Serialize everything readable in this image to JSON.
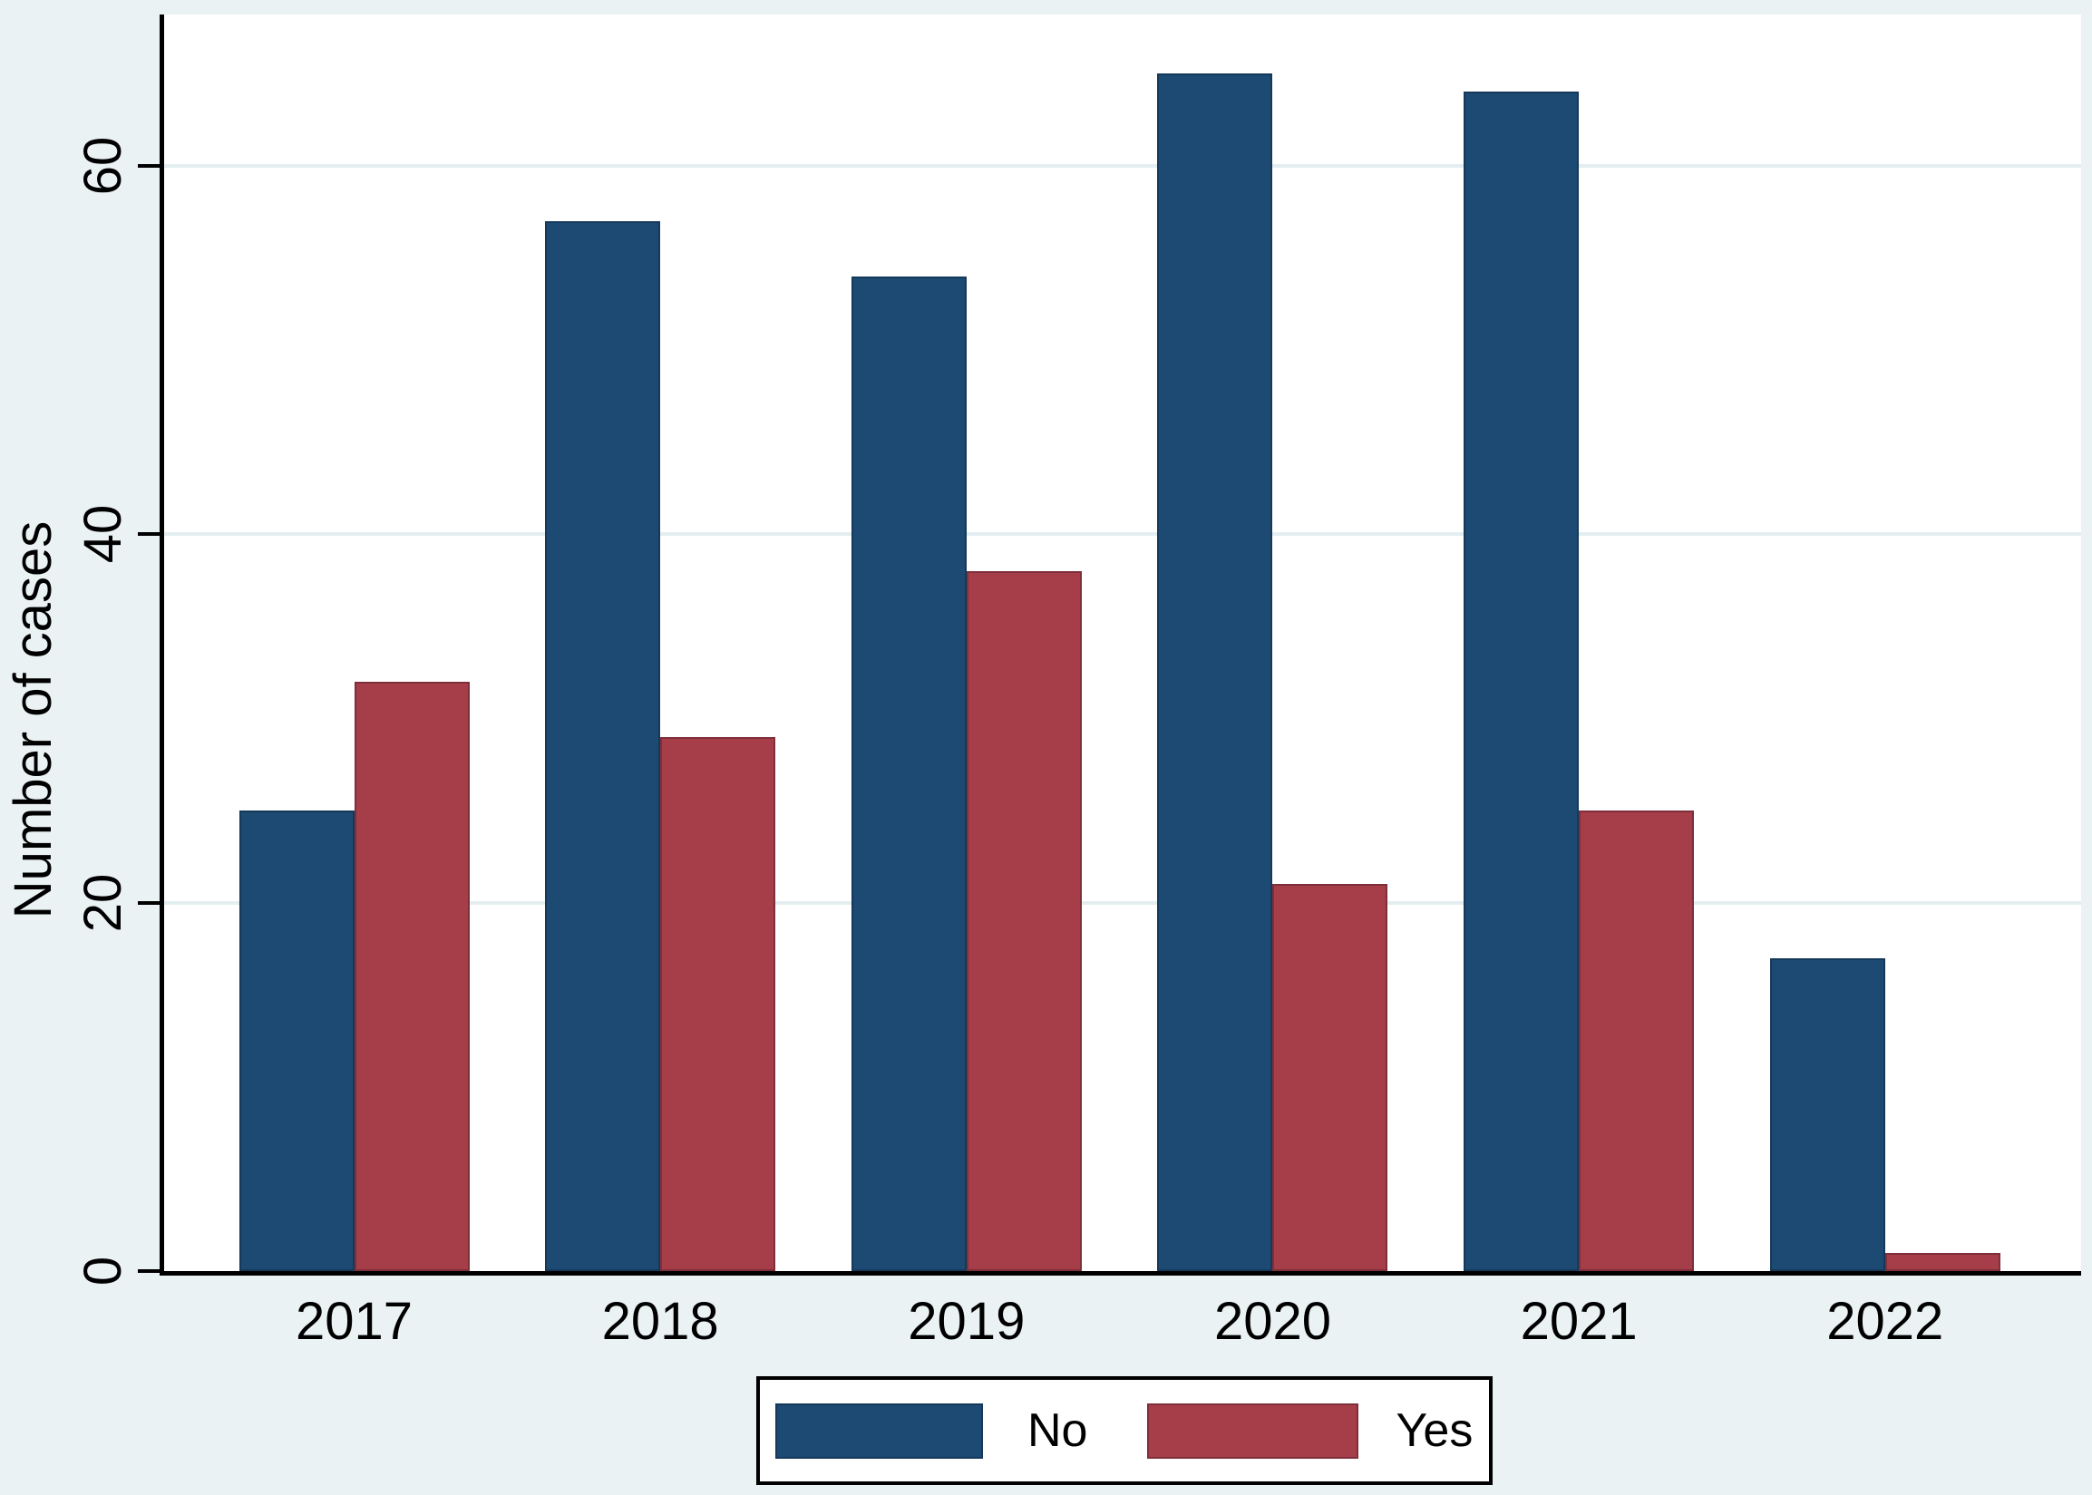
{
  "figure": {
    "background_color": "#EAF2F3",
    "plot_background_color": "#FFFFFF",
    "gridline_color": "#E4EEF1",
    "axis_color": "#000000"
  },
  "chart_data": {
    "type": "bar",
    "categories": [
      "2017",
      "2018",
      "2019",
      "2020",
      "2021",
      "2022"
    ],
    "series": [
      {
        "name": "No",
        "color": "#1C4A72",
        "values": [
          25,
          57,
          54,
          65,
          64,
          17
        ]
      },
      {
        "name": "Yes",
        "color": "#A53E49",
        "values": [
          32,
          29,
          38,
          21,
          25,
          1
        ]
      }
    ],
    "title": "",
    "xlabel": "",
    "ylabel": "Number of cases",
    "yticks": [
      0,
      20,
      40,
      60
    ],
    "ylim": [
      0,
      68.2
    ],
    "grid": "horizontal-only",
    "legend_position": "bottom-boxed",
    "legend": [
      "No",
      "Yes"
    ]
  }
}
